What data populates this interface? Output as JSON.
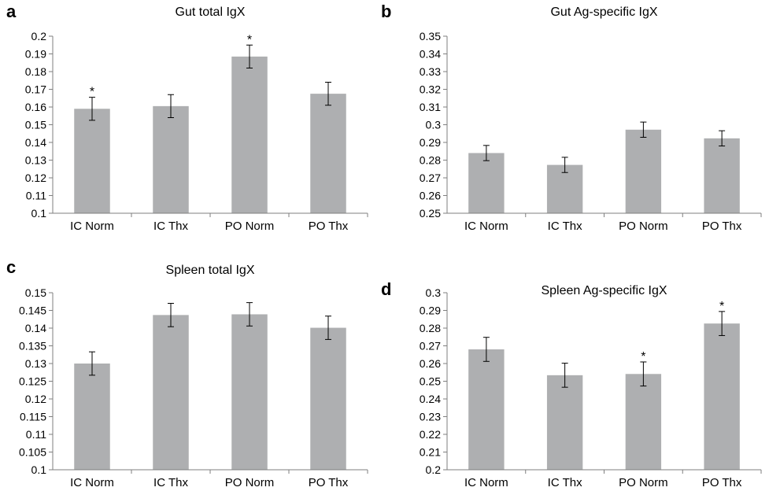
{
  "chart_data": [
    {
      "panel": "a",
      "type": "bar",
      "title": "Gut total IgX",
      "categories": [
        "IC Norm",
        "IC Thx",
        "PO Norm",
        "PO Thx"
      ],
      "values": [
        0.159,
        0.1605,
        0.1885,
        0.1675
      ],
      "errors": [
        0.0065,
        0.0065,
        0.0065,
        0.0065
      ],
      "significant": [
        true,
        false,
        true,
        false
      ],
      "significance_marker": "*",
      "ylim": [
        0.1,
        0.2
      ],
      "yticks": [
        "0.1",
        "0.11",
        "0.12",
        "0.13",
        "0.14",
        "0.15",
        "0.16",
        "0.17",
        "0.18",
        "0.19",
        "0.2"
      ],
      "ytick_values": [
        0.1,
        0.11,
        0.12,
        0.13,
        0.14,
        0.15,
        0.16,
        0.17,
        0.18,
        0.19,
        0.2
      ],
      "xlabel": "",
      "ylabel": "",
      "bar_color": "#aeafb1",
      "grid": false
    },
    {
      "panel": "b",
      "type": "bar",
      "title": "Gut Ag-specific IgX",
      "categories": [
        "IC Norm",
        "IC Thx",
        "PO Norm",
        "PO Thx"
      ],
      "values": [
        0.284,
        0.2773,
        0.2972,
        0.2923
      ],
      "errors": [
        0.0043,
        0.0043,
        0.0043,
        0.0043
      ],
      "significant": [
        false,
        false,
        false,
        false
      ],
      "significance_marker": "*",
      "ylim": [
        0.25,
        0.35
      ],
      "yticks": [
        "0.25",
        "0.26",
        "0.27",
        "0.28",
        "0.29",
        "0.3",
        "0.31",
        "0.32",
        "0.33",
        "0.34",
        "0.35"
      ],
      "ytick_values": [
        0.25,
        0.26,
        0.27,
        0.28,
        0.29,
        0.3,
        0.31,
        0.32,
        0.33,
        0.34,
        0.35
      ],
      "xlabel": "",
      "ylabel": "",
      "bar_color": "#aeafb1",
      "grid": false
    },
    {
      "panel": "c",
      "type": "bar",
      "title": "Spleen total IgX",
      "categories": [
        "IC Norm",
        "IC Thx",
        "PO Norm",
        "PO Thx"
      ],
      "values": [
        0.13,
        0.1437,
        0.1439,
        0.1401
      ],
      "errors": [
        0.0033,
        0.0033,
        0.0033,
        0.0033
      ],
      "significant": [
        false,
        false,
        false,
        false
      ],
      "significance_marker": "*",
      "ylim": [
        0.1,
        0.15
      ],
      "yticks": [
        "0.1",
        "0.105",
        "0.11",
        "0.115",
        "0.12",
        "0.125",
        "0.13",
        "0.135",
        "0.14",
        "0.145",
        "0.15"
      ],
      "ytick_values": [
        0.1,
        0.105,
        0.11,
        0.115,
        0.12,
        0.125,
        0.13,
        0.135,
        0.14,
        0.145,
        0.15
      ],
      "xlabel": "",
      "ylabel": "",
      "bar_color": "#aeafb1",
      "grid": false
    },
    {
      "panel": "d",
      "type": "bar",
      "title": "Spleen Ag-specific IgX",
      "categories": [
        "IC Norm",
        "IC Thx",
        "PO Norm",
        "PO Thx"
      ],
      "values": [
        0.268,
        0.2534,
        0.2541,
        0.2826
      ],
      "errors": [
        0.0068,
        0.0068,
        0.0068,
        0.0068
      ],
      "significant": [
        false,
        false,
        true,
        true
      ],
      "significance_marker": "*",
      "ylim": [
        0.2,
        0.3
      ],
      "yticks": [
        "0.2",
        "0.21",
        "0.22",
        "0.23",
        "0.24",
        "0.25",
        "0.26",
        "0.27",
        "0.28",
        "0.29",
        "0.3"
      ],
      "ytick_values": [
        0.2,
        0.21,
        0.22,
        0.23,
        0.24,
        0.25,
        0.26,
        0.27,
        0.28,
        0.29,
        0.3
      ],
      "xlabel": "",
      "ylabel": "",
      "bar_color": "#aeafb1",
      "grid": false
    }
  ]
}
